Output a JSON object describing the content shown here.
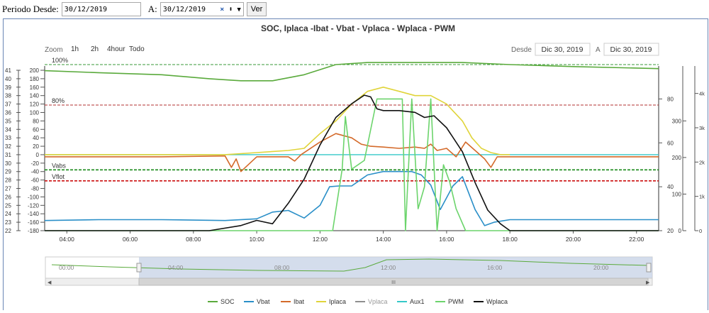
{
  "filter": {
    "desde_label": "Periodo Desde:",
    "desde_value": "30/12/2019",
    "a_label": "A:",
    "a_value": "30/12/2019",
    "clear_glyph": "×",
    "spin_glyph": "⬍",
    "dropdown_glyph": "▼",
    "ver_label": "Ver"
  },
  "zoom": {
    "label": "Zoom",
    "buttons": [
      "1h",
      "2h",
      "4hour",
      "Todo"
    ]
  },
  "range": {
    "from_label": "Desde",
    "from_value": "Dic 30, 2019",
    "to_label": "A",
    "to_value": "Dic 30, 2019"
  },
  "navigator": {
    "x_ticks": [
      "00:00",
      "04:00",
      "08:00",
      "12:00",
      "16:00",
      "20:00"
    ],
    "scroll_grip": "III"
  },
  "chart_data": {
    "type": "line",
    "title": "SOC, Iplaca -Ibat - Vbat - Vplaca - Wplaca - PWM",
    "x_ticks": [
      "04:00",
      "06:00",
      "08:00",
      "10:00",
      "12:00",
      "14:00",
      "16:00",
      "18:00",
      "20:00",
      "22:00"
    ],
    "x_range_hours": [
      3.3,
      22.7
    ],
    "axes": {
      "vbat_ticks": [
        41,
        40,
        39,
        38,
        37,
        36,
        35,
        34,
        33,
        32,
        31,
        30,
        29,
        28,
        27,
        26,
        25,
        24,
        23,
        22
      ],
      "ibat_ticks": [
        200,
        180,
        160,
        140,
        120,
        100,
        80,
        60,
        40,
        20,
        0,
        -20,
        -40,
        -60,
        -80,
        -100,
        -120,
        -140,
        -160,
        -180
      ],
      "right1_ticks": [
        80,
        60,
        40,
        20
      ],
      "right2_ticks": [
        300,
        200,
        100,
        0
      ],
      "right3_ticks": [
        "4k",
        "3k",
        "2k",
        "1k",
        "0"
      ]
    },
    "plot_lines": [
      {
        "label": "100%",
        "value_pct": 100,
        "color": "#3a9a3a"
      },
      {
        "label": "80%",
        "value_pct": 80,
        "color": "#b03030"
      },
      {
        "label": "Vabs",
        "value_v": 29.2,
        "color": "#1a8a1a"
      },
      {
        "label": "Vflot",
        "value_v": 27.9,
        "color": "#cc1010"
      },
      {
        "label": "",
        "value_a": 0,
        "color": "#35c8c8"
      }
    ],
    "series": [
      {
        "name": "SOC",
        "color": "#5aaa3c",
        "axis": "soc_pct",
        "x": [
          3.3,
          5,
          7,
          8.5,
          9.5,
          10.5,
          11.5,
          12.5,
          13.5,
          14.5,
          15.5,
          16.5,
          18,
          20,
          22.7
        ],
        "y": [
          97,
          96,
          95,
          93,
          92,
          92,
          95,
          100,
          101,
          101,
          101,
          101,
          100,
          99,
          98
        ]
      },
      {
        "name": "Vbat",
        "color": "#2a8fc8",
        "axis": "vbat",
        "x": [
          3.3,
          5,
          7,
          9,
          10,
          10.5,
          11.0,
          11.5,
          12.0,
          12.3,
          12.6,
          13.0,
          13.5,
          14.0,
          14.5,
          14.9,
          15.2,
          15.5,
          15.8,
          16.2,
          16.5,
          16.9,
          17.2,
          17.5,
          18,
          20,
          22.7
        ],
        "y": [
          23.2,
          23.3,
          23.3,
          23.2,
          23.4,
          24.2,
          24.4,
          23.5,
          25.0,
          27.2,
          27.3,
          27.3,
          28.6,
          29.0,
          29.0,
          29.0,
          28.6,
          27.4,
          24.5,
          27.3,
          28.4,
          24.5,
          22.6,
          23.0,
          23.3,
          23.3,
          23.3
        ]
      },
      {
        "name": "Ibat",
        "color": "#d46a2a",
        "axis": "ibat",
        "x": [
          3.3,
          5,
          7,
          9,
          9.2,
          9.35,
          9.5,
          10,
          11,
          11.2,
          11.4,
          12,
          12.5,
          13.0,
          13.3,
          13.6,
          14.0,
          14.5,
          15.0,
          15.3,
          15.5,
          15.7,
          16.0,
          16.3,
          16.6,
          16.9,
          17.2,
          17.4,
          17.6,
          18,
          20,
          22.7
        ],
        "y": [
          -5,
          -5,
          -5,
          -3,
          -30,
          -10,
          -40,
          -5,
          -5,
          -15,
          0,
          30,
          50,
          40,
          25,
          20,
          18,
          15,
          18,
          15,
          25,
          10,
          15,
          -5,
          30,
          10,
          -10,
          -30,
          -5,
          -5,
          -5,
          -5
        ]
      },
      {
        "name": "Iplaca",
        "color": "#e0d43a",
        "axis": "ibat",
        "x": [
          3.3,
          9,
          10,
          11,
          11.5,
          12.0,
          12.5,
          13.0,
          13.5,
          14.0,
          14.5,
          15.0,
          15.5,
          16.0,
          16.5,
          16.8,
          17.1,
          17.4,
          17.7,
          18.0
        ],
        "y": [
          0,
          0,
          5,
          10,
          15,
          50,
          80,
          120,
          150,
          160,
          150,
          140,
          140,
          120,
          80,
          40,
          15,
          5,
          0,
          0
        ]
      },
      {
        "name": "Vplaca",
        "color": "#8f8f8f",
        "axis": "vbat",
        "x": [],
        "y": []
      },
      {
        "name": "Aux1",
        "color": "#35c8c8",
        "axis": "ibat",
        "x": [],
        "y": []
      },
      {
        "name": "PWM",
        "color": "#6cd46c",
        "axis": "right1",
        "x": [
          3.3,
          12.4,
          12.7,
          12.8,
          13.0,
          13.4,
          13.8,
          14.6,
          14.7,
          14.9,
          15.1,
          15.3,
          15.5,
          15.7,
          15.9,
          16.1,
          16.3,
          16.6,
          16.9,
          17.2,
          22.7
        ],
        "y": [
          20,
          20,
          48,
          72,
          48,
          52,
          80,
          80,
          20,
          80,
          30,
          40,
          80,
          20,
          50,
          42,
          30,
          20,
          20,
          20,
          20
        ]
      },
      {
        "name": "Wplaca",
        "color": "#111111",
        "axis": "right3",
        "x": [
          3.3,
          8.5,
          9.5,
          10.0,
          10.5,
          11.0,
          11.5,
          12.0,
          12.5,
          13.0,
          13.4,
          13.6,
          13.8,
          14.0,
          14.5,
          15.0,
          15.3,
          15.6,
          16.0,
          16.5,
          16.9,
          17.3,
          17.7,
          18.0,
          22.7
        ],
        "y": [
          0,
          0,
          150,
          300,
          200,
          800,
          1500,
          2500,
          3300,
          3700,
          3950,
          3900,
          3550,
          3500,
          3500,
          3450,
          3300,
          3350,
          3000,
          2300,
          1400,
          600,
          200,
          0,
          0
        ]
      }
    ],
    "legend_position": "bottom-center"
  }
}
